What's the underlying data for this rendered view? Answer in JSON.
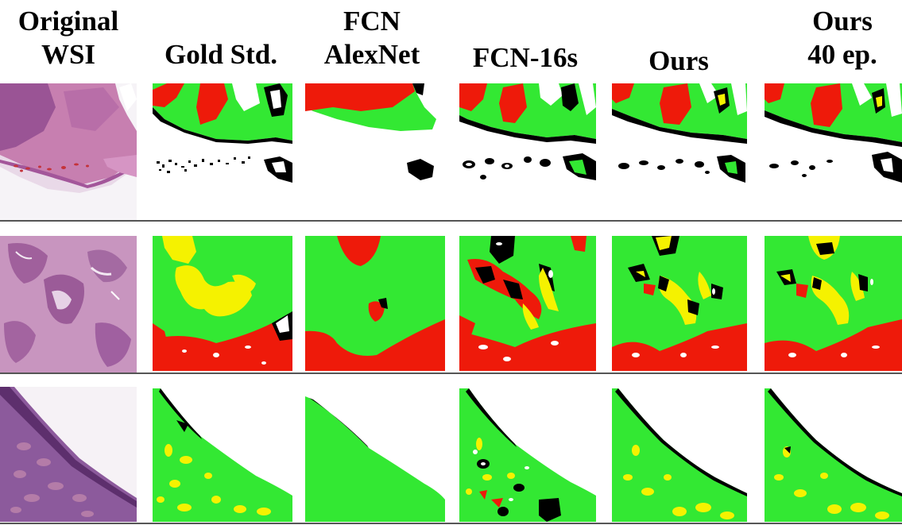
{
  "columns": [
    {
      "id": "original",
      "lines": [
        "Original",
        "WSI"
      ]
    },
    {
      "id": "gold",
      "lines": [
        "",
        "Gold Std."
      ]
    },
    {
      "id": "fcn-alexnet",
      "lines": [
        "FCN",
        "AlexNet"
      ]
    },
    {
      "id": "fcn-16s",
      "lines": [
        "",
        "FCN-16s"
      ]
    },
    {
      "id": "ours",
      "lines": [
        "",
        "Ours"
      ]
    },
    {
      "id": "ours-40",
      "lines": [
        "Ours",
        "40 ep."
      ]
    }
  ],
  "colors": {
    "background": "#ffffff",
    "green": "#33e833",
    "red": "#ee1a0a",
    "yellow": "#f5f200",
    "black": "#000000",
    "tissue_pink": "#d8a2c6",
    "tissue_purple": "#7a4a8a"
  }
}
